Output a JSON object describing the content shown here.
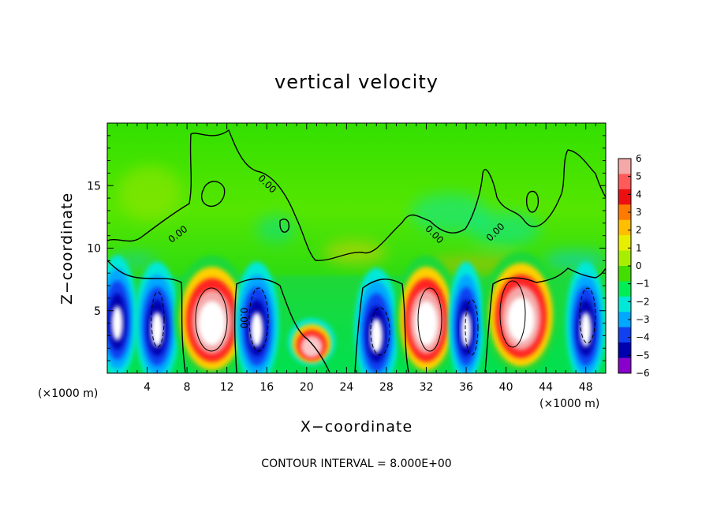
{
  "chart_data": {
    "type": "heatmap",
    "title": "vertical velocity",
    "xlabel": "X−coordinate",
    "ylabel": "Z−coordinate",
    "x_scale_label": "(×1000 m)",
    "y_scale_label": "(×1000 m)",
    "footer": "CONTOUR INTERVAL = 8.000E+00",
    "xlim": [
      0,
      50
    ],
    "ylim": [
      0,
      20
    ],
    "x_ticks": [
      "4",
      "8",
      "12",
      "16",
      "20",
      "24",
      "28",
      "32",
      "36",
      "40",
      "44",
      "48"
    ],
    "y_ticks": [
      "5",
      "10",
      "15"
    ],
    "contour_labels": [
      "0.00",
      "0.00",
      "0.00",
      "0.00",
      "0.00"
    ],
    "colorbar": {
      "range": [
        -6,
        6
      ],
      "labels": [
        "6",
        "5",
        "4",
        "3",
        "2",
        "1",
        "0",
        "−1",
        "−2",
        "−3",
        "−4",
        "−5",
        "−6"
      ],
      "colors": [
        "#f4a8a8",
        "#ff5a5a",
        "#ee1010",
        "#ff7a00",
        "#ffbf00",
        "#e8ee00",
        "#a8ee00",
        "#44dd00",
        "#00ee55",
        "#00e8d8",
        "#00a8ff",
        "#1040f0",
        "#0000b0",
        "#8800cc"
      ]
    },
    "cells": [
      {
        "x": 1,
        "z": 4.5,
        "w": 0.9,
        "type": "down"
      },
      {
        "x": 5,
        "z": 4.0,
        "w": 1.0,
        "type": "down"
      },
      {
        "x": 10.5,
        "z": 4.5,
        "w": 1.2,
        "type": "up"
      },
      {
        "x": 15,
        "z": 4.0,
        "w": 1.0,
        "type": "down"
      },
      {
        "x": 20.5,
        "z": 2.5,
        "w": 1.0,
        "type": "up-weak"
      },
      {
        "x": 27,
        "z": 3.5,
        "w": 1.0,
        "type": "down"
      },
      {
        "x": 32,
        "z": 4.5,
        "w": 1.0,
        "type": "up"
      },
      {
        "x": 36,
        "z": 4.0,
        "w": 0.8,
        "type": "down"
      },
      {
        "x": 41.5,
        "z": 4.8,
        "w": 1.2,
        "type": "up"
      },
      {
        "x": 48,
        "z": 4.0,
        "w": 0.9,
        "type": "down"
      }
    ]
  }
}
